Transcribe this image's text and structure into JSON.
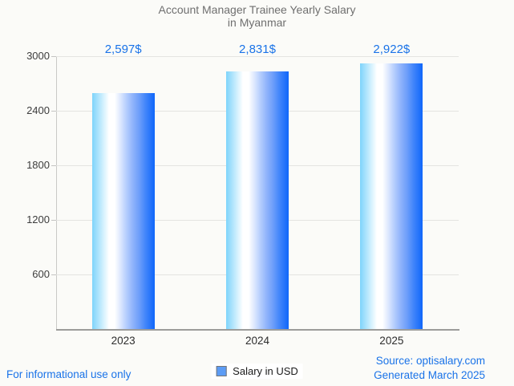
{
  "title": {
    "line1": "Account Manager Trainee Yearly Salary",
    "line2": "in Myanmar"
  },
  "chart_data": {
    "type": "bar",
    "title": "Account Manager Trainee Yearly Salary in Myanmar",
    "categories": [
      "2023",
      "2024",
      "2025"
    ],
    "values": [
      2597,
      2831,
      2922
    ],
    "value_labels": [
      "2,597$",
      "2,831$",
      "2,922$"
    ],
    "xlabel": "",
    "ylabel": "",
    "ylim": [
      0,
      3000
    ],
    "yticks": [
      600,
      1200,
      1800,
      2400,
      3000
    ],
    "grid": true,
    "legend_position": "bottom",
    "legend_entries": [
      "Salary in USD"
    ],
    "bar_gradient": [
      "#7ed4fb",
      "#ffffff",
      "#0f66fa"
    ],
    "value_label_color": "#1a73e8"
  },
  "legend": {
    "label": "Salary in USD",
    "marker_fill": "#5c9cf5",
    "marker_border": "#757575"
  },
  "footer": {
    "left": "For informational use only",
    "source": "Source: optisalary.com",
    "generated": "Generated March 2025"
  }
}
